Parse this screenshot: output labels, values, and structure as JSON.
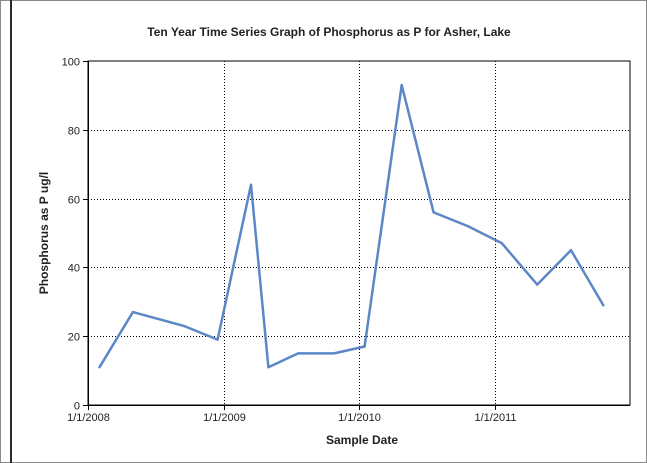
{
  "chart_data": {
    "type": "line",
    "title": "Ten Year Time Series Graph of Phosphorus as P for Asher, Lake",
    "xlabel": "Sample Date",
    "ylabel": "Phosphorus as P ug/l",
    "ylim": [
      0,
      100
    ],
    "xlim": [
      "2008-01-01",
      "2011-12-31"
    ],
    "grid": true,
    "y_ticks": [
      {
        "value": 0,
        "label": "0"
      },
      {
        "value": 20,
        "label": "20"
      },
      {
        "value": 40,
        "label": "40"
      },
      {
        "value": 60,
        "label": "60"
      },
      {
        "value": 80,
        "label": "80"
      },
      {
        "value": 100,
        "label": "100"
      }
    ],
    "x_ticks": [
      {
        "date": "2008-01-01",
        "label": "1/1/2008"
      },
      {
        "date": "2009-01-01",
        "label": "1/1/2009"
      },
      {
        "date": "2010-01-01",
        "label": "1/1/2010"
      },
      {
        "date": "2011-01-01",
        "label": "1/1/2011"
      }
    ],
    "series": [
      {
        "color": "#5b87c7",
        "points": [
          {
            "x": "2008-02-01",
            "y": 11
          },
          {
            "x": "2008-05-01",
            "y": 27
          },
          {
            "x": "2008-09-15",
            "y": 23
          },
          {
            "x": "2008-12-15",
            "y": 19
          },
          {
            "x": "2009-03-15",
            "y": 64
          },
          {
            "x": "2009-05-01",
            "y": 11
          },
          {
            "x": "2009-07-20",
            "y": 15
          },
          {
            "x": "2009-10-25",
            "y": 15
          },
          {
            "x": "2010-01-15",
            "y": 17
          },
          {
            "x": "2010-04-25",
            "y": 93
          },
          {
            "x": "2010-07-20",
            "y": 56
          },
          {
            "x": "2010-10-20",
            "y": 52
          },
          {
            "x": "2011-01-20",
            "y": 47
          },
          {
            "x": "2011-04-25",
            "y": 35
          },
          {
            "x": "2011-07-25",
            "y": 45
          },
          {
            "x": "2011-10-20",
            "y": 29
          }
        ]
      }
    ]
  }
}
